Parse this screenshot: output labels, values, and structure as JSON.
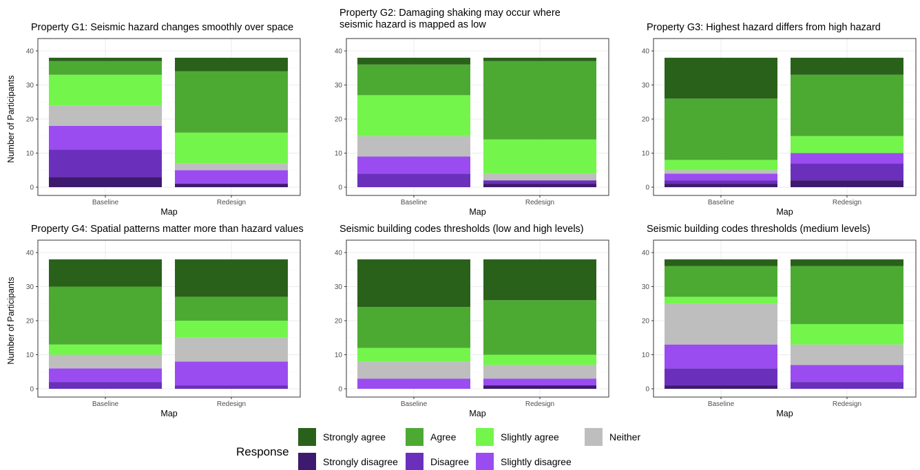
{
  "colors": {
    "Strongly agree": "#2a611a",
    "Agree": "#4caa33",
    "Slightly agree": "#74f54c",
    "Neither": "#bebebe",
    "Slightly disagree": "#9a4cf0",
    "Disagree": "#6a30bc",
    "Strongly disagree": "#3e1a6e"
  },
  "legend": {
    "title": "Response",
    "row1": [
      "Strongly agree",
      "Agree",
      "Slightly agree",
      "Neither"
    ],
    "row2": [
      "Strongly disagree",
      "Disagree",
      "Slightly disagree"
    ]
  },
  "chart_data": [
    {
      "type": "bar",
      "stacked": true,
      "title": [
        "Property G1: Seismic hazard changes smoothly over space"
      ],
      "xlabel": "Map",
      "ylabel": "Number of Participants",
      "categories": [
        "Baseline",
        "Redesign"
      ],
      "ylim": [
        0,
        40
      ],
      "yticks": [
        0,
        10,
        20,
        30,
        40
      ],
      "series": [
        {
          "name": "Strongly disagree",
          "values": [
            3,
            1
          ]
        },
        {
          "name": "Disagree",
          "values": [
            8,
            0
          ]
        },
        {
          "name": "Slightly disagree",
          "values": [
            7,
            4
          ]
        },
        {
          "name": "Neither",
          "values": [
            6,
            2
          ]
        },
        {
          "name": "Slightly agree",
          "values": [
            9,
            9
          ]
        },
        {
          "name": "Agree",
          "values": [
            4,
            18
          ]
        },
        {
          "name": "Strongly agree",
          "values": [
            1,
            4
          ]
        }
      ]
    },
    {
      "type": "bar",
      "stacked": true,
      "title": [
        "Property G2: Damaging shaking may occur where",
        "seismic hazard is mapped as low"
      ],
      "xlabel": "Map",
      "ylabel": "",
      "categories": [
        "Baseline",
        "Redesign"
      ],
      "ylim": [
        0,
        40
      ],
      "yticks": [
        0,
        10,
        20,
        30,
        40
      ],
      "series": [
        {
          "name": "Strongly disagree",
          "values": [
            0,
            1
          ]
        },
        {
          "name": "Disagree",
          "values": [
            4,
            1
          ]
        },
        {
          "name": "Slightly disagree",
          "values": [
            5,
            0
          ]
        },
        {
          "name": "Neither",
          "values": [
            6,
            2
          ]
        },
        {
          "name": "Slightly agree",
          "values": [
            12,
            10
          ]
        },
        {
          "name": "Agree",
          "values": [
            9,
            23
          ]
        },
        {
          "name": "Strongly agree",
          "values": [
            2,
            1
          ]
        }
      ]
    },
    {
      "type": "bar",
      "stacked": true,
      "title": [
        "Property G3: Highest hazard differs from high hazard"
      ],
      "xlabel": "Map",
      "ylabel": "",
      "categories": [
        "Baseline",
        "Redesign"
      ],
      "ylim": [
        0,
        40
      ],
      "yticks": [
        0,
        10,
        20,
        30,
        40
      ],
      "series": [
        {
          "name": "Strongly disagree",
          "values": [
            1,
            2
          ]
        },
        {
          "name": "Disagree",
          "values": [
            1,
            5
          ]
        },
        {
          "name": "Slightly disagree",
          "values": [
            2,
            3
          ]
        },
        {
          "name": "Neither",
          "values": [
            1,
            0
          ]
        },
        {
          "name": "Slightly agree",
          "values": [
            3,
            5
          ]
        },
        {
          "name": "Agree",
          "values": [
            18,
            18
          ]
        },
        {
          "name": "Strongly agree",
          "values": [
            12,
            5
          ]
        }
      ]
    },
    {
      "type": "bar",
      "stacked": true,
      "title": [
        "Property G4: Spatial patterns matter more than hazard values"
      ],
      "xlabel": "Map",
      "ylabel": "Number of Participants",
      "categories": [
        "Baseline",
        "Redesign"
      ],
      "ylim": [
        0,
        40
      ],
      "yticks": [
        0,
        10,
        20,
        30,
        40
      ],
      "series": [
        {
          "name": "Strongly disagree",
          "values": [
            0,
            0
          ]
        },
        {
          "name": "Disagree",
          "values": [
            2,
            1
          ]
        },
        {
          "name": "Slightly disagree",
          "values": [
            4,
            7
          ]
        },
        {
          "name": "Neither",
          "values": [
            4,
            7
          ]
        },
        {
          "name": "Slightly agree",
          "values": [
            3,
            5
          ]
        },
        {
          "name": "Agree",
          "values": [
            17,
            7
          ]
        },
        {
          "name": "Strongly agree",
          "values": [
            8,
            11
          ]
        }
      ]
    },
    {
      "type": "bar",
      "stacked": true,
      "title": [
        "Seismic building codes thresholds (low and high levels)"
      ],
      "xlabel": "Map",
      "ylabel": "",
      "categories": [
        "Baseline",
        "Redesign"
      ],
      "ylim": [
        0,
        40
      ],
      "yticks": [
        0,
        10,
        20,
        30,
        40
      ],
      "series": [
        {
          "name": "Strongly disagree",
          "values": [
            0,
            1
          ]
        },
        {
          "name": "Disagree",
          "values": [
            0,
            0
          ]
        },
        {
          "name": "Slightly disagree",
          "values": [
            3,
            2
          ]
        },
        {
          "name": "Neither",
          "values": [
            5,
            4
          ]
        },
        {
          "name": "Slightly agree",
          "values": [
            4,
            3
          ]
        },
        {
          "name": "Agree",
          "values": [
            12,
            16
          ]
        },
        {
          "name": "Strongly agree",
          "values": [
            14,
            12
          ]
        }
      ]
    },
    {
      "type": "bar",
      "stacked": true,
      "title": [
        "Seismic building codes thresholds (medium levels)"
      ],
      "xlabel": "Map",
      "ylabel": "",
      "categories": [
        "Baseline",
        "Redesign"
      ],
      "ylim": [
        0,
        40
      ],
      "yticks": [
        0,
        10,
        20,
        30,
        40
      ],
      "series": [
        {
          "name": "Strongly disagree",
          "values": [
            1,
            0
          ]
        },
        {
          "name": "Disagree",
          "values": [
            5,
            2
          ]
        },
        {
          "name": "Slightly disagree",
          "values": [
            7,
            5
          ]
        },
        {
          "name": "Neither",
          "values": [
            12,
            6
          ]
        },
        {
          "name": "Slightly agree",
          "values": [
            2,
            6
          ]
        },
        {
          "name": "Agree",
          "values": [
            9,
            17
          ]
        },
        {
          "name": "Strongly agree",
          "values": [
            2,
            2
          ]
        }
      ]
    }
  ]
}
